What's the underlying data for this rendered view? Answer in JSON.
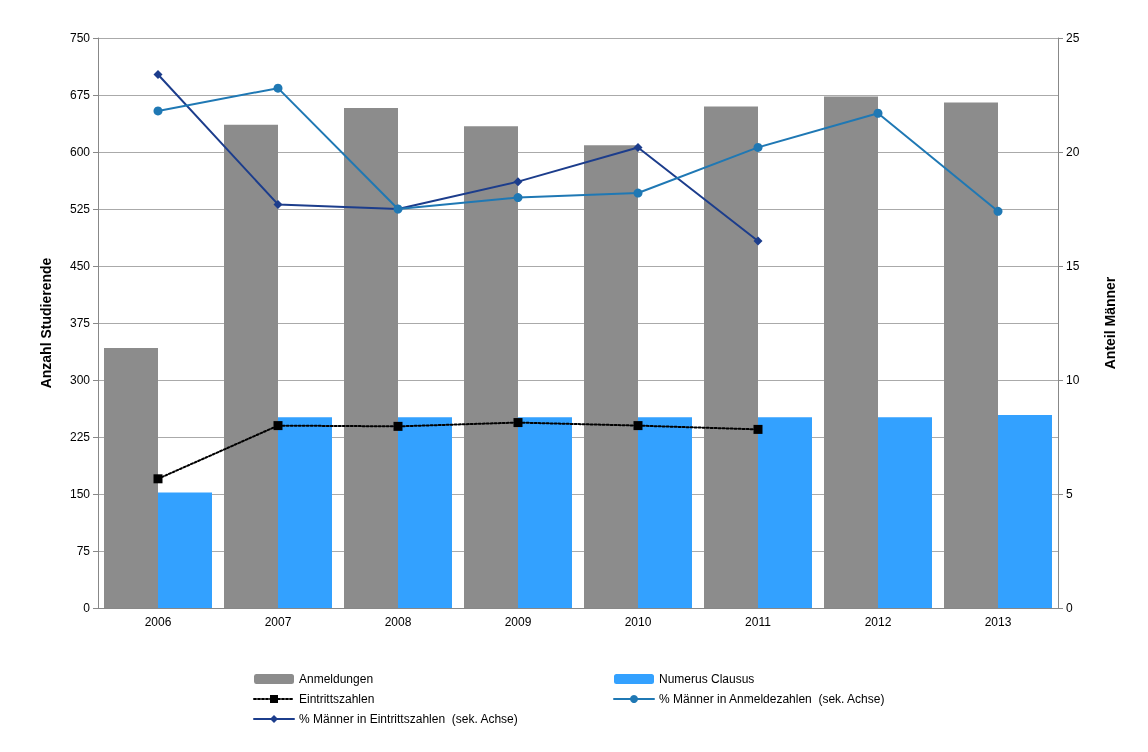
{
  "chart_data": {
    "type": "bar",
    "categories": [
      "2006",
      "2007",
      "2008",
      "2009",
      "2010",
      "2011",
      "2012",
      "2013"
    ],
    "ylabel": "Anzahl Studierende",
    "y2label": "Anteil Männer",
    "ylim": [
      0,
      750
    ],
    "yticks": [
      0,
      75,
      150,
      225,
      300,
      375,
      450,
      525,
      600,
      675,
      750
    ],
    "y2lim": [
      0,
      25
    ],
    "y2ticks": [
      0,
      5,
      10,
      15,
      20,
      25
    ],
    "grid": "y",
    "legend": "bottom",
    "series": [
      {
        "name": "Anmeldungen",
        "color": "#8c8c8c",
        "values": [
          342,
          636,
          658,
          634,
          609,
          660,
          673,
          665
        ]
      },
      {
        "name": "Numerus Clausus",
        "color": "#33a1ff",
        "values": [
          152,
          251,
          251,
          251,
          251,
          251,
          251,
          254
        ]
      },
      {
        "name": "Eintrittszahlen",
        "type": "line",
        "color": "#000000",
        "marker": "square",
        "line_style": "dotted",
        "values": [
          170,
          240,
          239,
          244,
          240,
          235,
          null,
          null
        ]
      },
      {
        "name": "% Männer in Anmeldezahlen  (sek. Achse)",
        "type": "line",
        "axis": "y2",
        "color": "#1f78b4",
        "marker": "circle",
        "line_style": "solid",
        "values": [
          21.8,
          22.8,
          17.5,
          18.0,
          18.2,
          20.2,
          21.7,
          17.4
        ]
      },
      {
        "name": "% Männer in Eintrittszahlen  (sek. Achse)",
        "type": "line",
        "axis": "y2",
        "color": "#1c3d8c",
        "marker": "diamond",
        "line_style": "solid",
        "values": [
          23.4,
          17.7,
          17.5,
          18.7,
          20.2,
          16.1,
          null,
          null
        ]
      }
    ]
  }
}
